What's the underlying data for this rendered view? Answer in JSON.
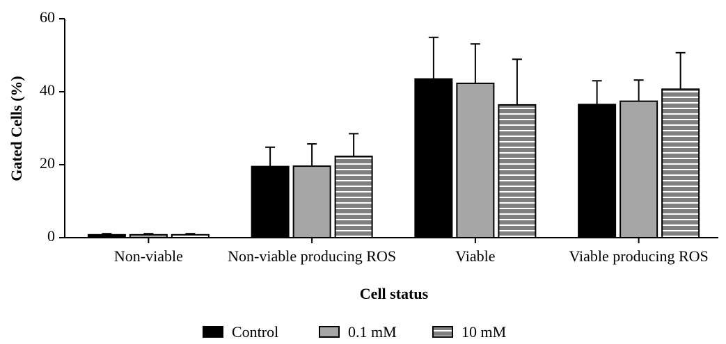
{
  "chart_data": {
    "type": "bar",
    "title": "",
    "xlabel": "Cell status",
    "ylabel": "Gated Cells (%)",
    "ylim": [
      0,
      60
    ],
    "yticks": [
      0,
      20,
      40,
      60
    ],
    "categories": [
      "Non-viable",
      "Non-viable producing ROS",
      "Viable",
      "Viable producing ROS"
    ],
    "series": [
      {
        "name": "Control",
        "values": [
          0.8,
          19.5,
          43.5,
          36.5
        ],
        "errors": [
          0.3,
          5.3,
          11.4,
          6.5
        ],
        "color": "#000000",
        "pattern": "solid"
      },
      {
        "name": "0.1 mM",
        "values": [
          0.8,
          19.6,
          42.3,
          37.4
        ],
        "errors": [
          0.3,
          6.1,
          10.8,
          5.8
        ],
        "color": "#a6a6a6",
        "pattern": "solid"
      },
      {
        "name": "10 mM",
        "values": [
          0.8,
          22.3,
          36.4,
          40.7
        ],
        "errors": [
          0.3,
          6.2,
          12.5,
          10.0
        ],
        "color": "#808080",
        "pattern": "horizontal-stripes"
      }
    ],
    "error_bars": "upper",
    "legend_position": "bottom",
    "grid": false
  }
}
